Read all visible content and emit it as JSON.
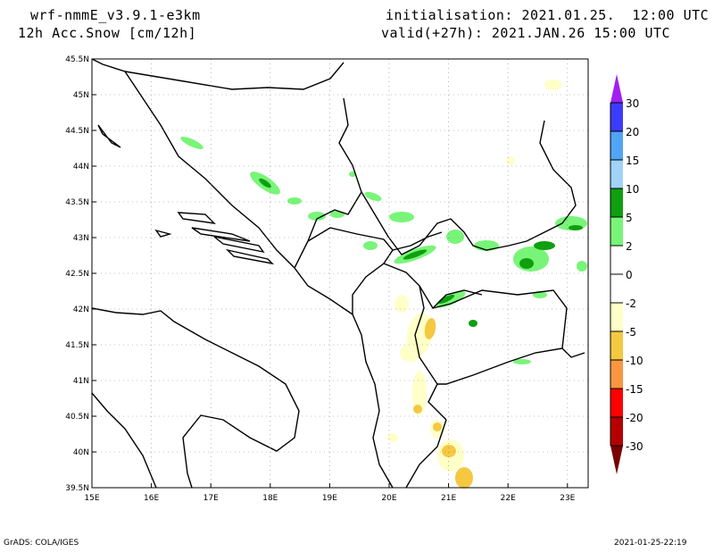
{
  "header": {
    "model": "wrf-nmmE_v3.9.1-e3km",
    "field": "12h Acc.Snow [cm/12h]",
    "init": "initialisation: 2021.01.25.  12:00 UTC",
    "valid": "valid(+27h): 2021.JAN.26 15:00 UTC"
  },
  "axes": {
    "lat_labels": [
      "45.5N",
      "45N",
      "44.5N",
      "44N",
      "43.5N",
      "43N",
      "42.5N",
      "42N",
      "41.5N",
      "41N",
      "40.5N",
      "40N",
      "39.5N"
    ],
    "lon_labels": [
      "15E",
      "16E",
      "17E",
      "18E",
      "19E",
      "20E",
      "21E",
      "22E",
      "23E"
    ]
  },
  "colorbar": {
    "labels": [
      "30",
      "20",
      "15",
      "10",
      "5",
      "2",
      "0",
      "-2",
      "-5",
      "-10",
      "-15",
      "-20",
      "-30"
    ],
    "colors": [
      "#a020f0",
      "#3c3cff",
      "#50a5f5",
      "#a0d2fa",
      "#0f9f0f",
      "#78f578",
      "#ffffff",
      "#ffffff",
      "#ffffc8",
      "#f5c841",
      "#fa9641",
      "#ff0000",
      "#b40000",
      "#780000"
    ]
  },
  "footer": {
    "left": "GrADS: COLA/IGES",
    "right": "2021-01-25-22:19"
  }
}
